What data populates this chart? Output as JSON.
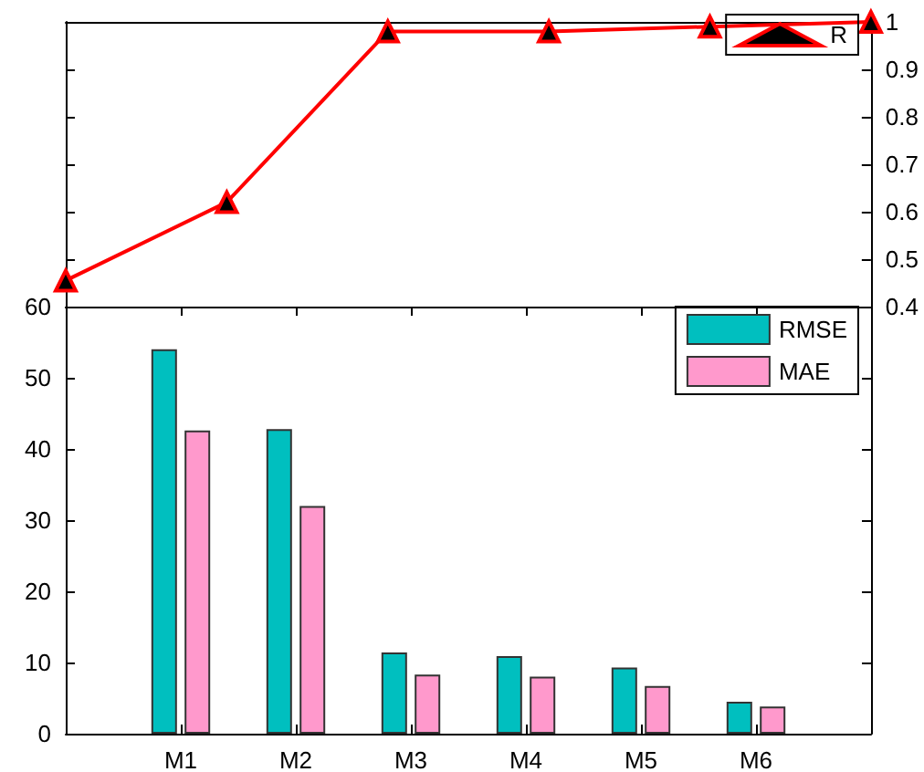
{
  "chart_data": [
    {
      "type": "line",
      "categories": [
        null,
        null,
        null,
        null,
        null,
        null
      ],
      "series": [
        {
          "name": "R",
          "color": "#ff0000",
          "values": [
            0.455,
            0.62,
            0.98,
            0.98,
            0.99,
            1.0
          ]
        }
      ],
      "ylim": [
        0.4,
        1
      ],
      "yticks": [
        0.4,
        0.5,
        0.6,
        0.7,
        0.8,
        0.9,
        1
      ],
      "tick_labels": "y",
      "marker": "triangle",
      "legend": "top right",
      "grid": false
    },
    {
      "type": "bar",
      "categories": [
        null,
        "M1",
        "M2",
        "M3",
        "M4",
        "M5",
        "M6",
        null
      ],
      "series": [
        {
          "name": "RMSE",
          "color": "#00bfbf",
          "values": [
            null,
            54,
            42.8,
            11.4,
            10.9,
            9.3,
            4.5,
            null
          ]
        },
        {
          "name": "MAE",
          "color": "#ff99cc",
          "values": [
            null,
            42.6,
            32,
            8.3,
            8.0,
            6.7,
            3.8,
            null
          ]
        }
      ],
      "ylim": [
        0,
        60
      ],
      "yticks": [
        0,
        10,
        20,
        30,
        40,
        50,
        60
      ],
      "legend": "top right",
      "grid": false
    }
  ]
}
